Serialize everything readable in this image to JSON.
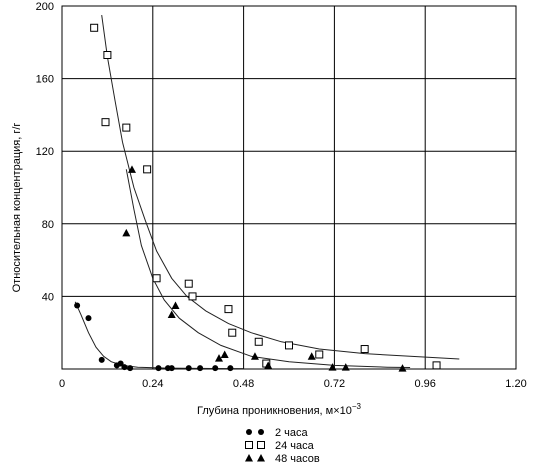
{
  "chart_data": {
    "type": "scatter",
    "title": "",
    "xlabel": "Глубина проникновения, м×10",
    "xlabel_exponent": "−3",
    "ylabel": "Относительная концентрация, г/г",
    "xlim": [
      0,
      1.2
    ],
    "ylim": [
      0,
      200
    ],
    "x_ticks": [
      "0",
      "0.24",
      "0.48",
      "0.72",
      "0.96",
      "1.20"
    ],
    "x_tick_values": [
      0,
      0.24,
      0.48,
      0.72,
      0.96,
      1.2
    ],
    "y_ticks": [
      "40",
      "80",
      "120",
      "160",
      "200"
    ],
    "y_tick_values": [
      40,
      80,
      120,
      160,
      200
    ],
    "grid": true,
    "legend_position": "bottom-center",
    "series": [
      {
        "name": "2 часа",
        "marker": "circle",
        "points": [
          [
            0.04,
            35
          ],
          [
            0.07,
            28
          ],
          [
            0.105,
            5
          ],
          [
            0.145,
            2
          ],
          [
            0.155,
            3
          ],
          [
            0.165,
            1
          ],
          [
            0.18,
            0.5
          ],
          [
            0.255,
            0.5
          ],
          [
            0.28,
            0.5
          ],
          [
            0.29,
            0.5
          ],
          [
            0.335,
            0.5
          ],
          [
            0.365,
            0.5
          ],
          [
            0.405,
            0.5
          ],
          [
            0.445,
            0.5
          ]
        ],
        "curve": [
          [
            0.035,
            37
          ],
          [
            0.05,
            30
          ],
          [
            0.07,
            20
          ],
          [
            0.09,
            12
          ],
          [
            0.11,
            7
          ],
          [
            0.13,
            4
          ],
          [
            0.16,
            2
          ],
          [
            0.2,
            1
          ],
          [
            0.28,
            0.5
          ],
          [
            0.4,
            0.3
          ],
          [
            0.48,
            0.2
          ]
        ]
      },
      {
        "name": "24 часа",
        "marker": "square",
        "points": [
          [
            0.085,
            188
          ],
          [
            0.12,
            173
          ],
          [
            0.115,
            136
          ],
          [
            0.17,
            133
          ],
          [
            0.225,
            110
          ],
          [
            0.25,
            50
          ],
          [
            0.335,
            47
          ],
          [
            0.345,
            40
          ],
          [
            0.44,
            33
          ],
          [
            0.45,
            20
          ],
          [
            0.52,
            15
          ],
          [
            0.54,
            3
          ],
          [
            0.6,
            13
          ],
          [
            0.68,
            8
          ],
          [
            0.8,
            11
          ],
          [
            0.99,
            2
          ]
        ],
        "curve": [
          [
            0.105,
            195
          ],
          [
            0.12,
            172
          ],
          [
            0.14,
            148
          ],
          [
            0.16,
            125
          ],
          [
            0.19,
            100
          ],
          [
            0.22,
            82
          ],
          [
            0.25,
            65
          ],
          [
            0.29,
            50
          ],
          [
            0.33,
            40
          ],
          [
            0.38,
            32
          ],
          [
            0.44,
            25
          ],
          [
            0.5,
            20
          ],
          [
            0.58,
            15
          ],
          [
            0.68,
            11
          ],
          [
            0.8,
            8.5
          ],
          [
            0.92,
            7
          ],
          [
            1.05,
            5.5
          ]
        ]
      },
      {
        "name": "48 часов",
        "marker": "triangle",
        "points": [
          [
            0.185,
            110
          ],
          [
            0.17,
            75
          ],
          [
            0.3,
            35
          ],
          [
            0.29,
            30
          ],
          [
            0.415,
            6
          ],
          [
            0.43,
            8
          ],
          [
            0.51,
            7
          ],
          [
            0.545,
            2
          ],
          [
            0.66,
            7
          ],
          [
            0.715,
            1
          ],
          [
            0.75,
            1
          ],
          [
            0.9,
            0.5
          ]
        ],
        "curve": [
          [
            0.17,
            110
          ],
          [
            0.19,
            88
          ],
          [
            0.21,
            68
          ],
          [
            0.24,
            50
          ],
          [
            0.27,
            38
          ],
          [
            0.31,
            28
          ],
          [
            0.36,
            20
          ],
          [
            0.42,
            13
          ],
          [
            0.5,
            7
          ],
          [
            0.6,
            4
          ],
          [
            0.72,
            2
          ],
          [
            0.86,
            1
          ],
          [
            0.92,
            0.8
          ]
        ]
      }
    ]
  }
}
